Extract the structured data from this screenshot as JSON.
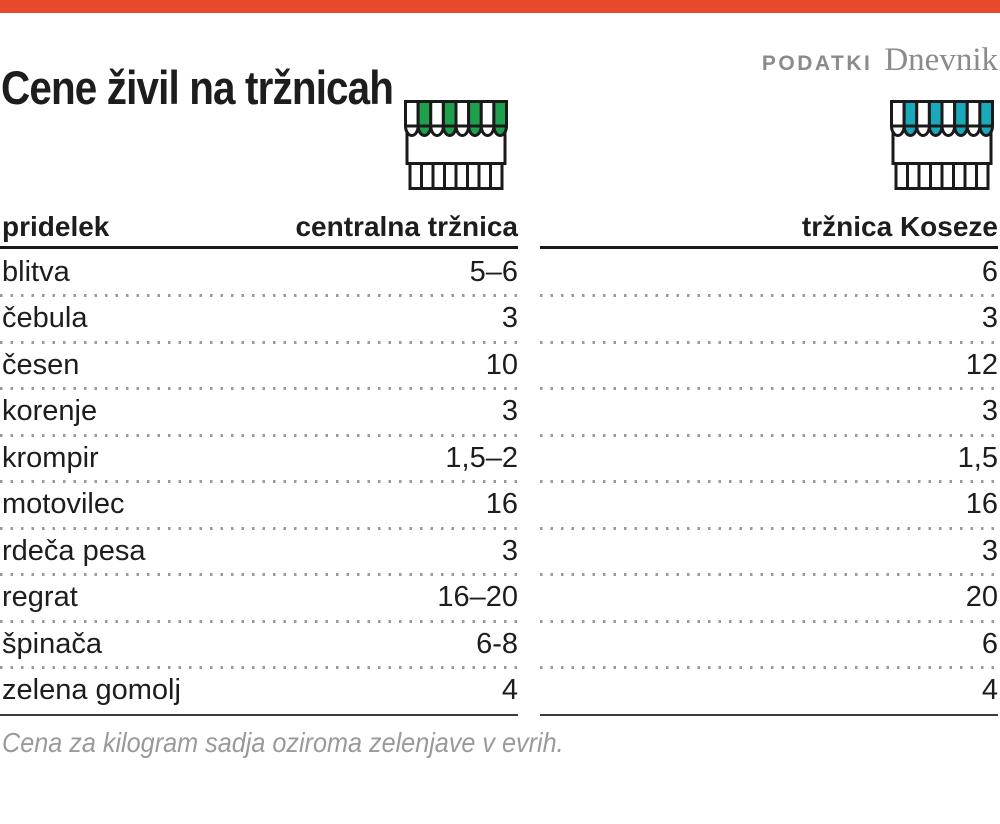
{
  "header": {
    "title": "Cene živil na tržnicah",
    "source_label": "PODATKI",
    "source_name": "Dnevnik"
  },
  "icons": {
    "left": "market-stall-awning-green",
    "right": "market-stall-awning-teal"
  },
  "colors": {
    "accent_orange": "#e8482c",
    "stall_green": "#1fa04c",
    "stall_teal": "#1aa9bb",
    "title_text": "#1d1d1d",
    "muted_text": "#8b8b8b"
  },
  "note": "Cena za kilogram sadja oziroma zelenjave v evrih.",
  "chart_data": {
    "type": "table",
    "title": "Cene živil na tržnicah",
    "columns": [
      "pridelek",
      "centralna tržnica",
      "tržnica Koseze"
    ],
    "rows": [
      [
        "blitva",
        "5–6",
        "6"
      ],
      [
        "čebula",
        "3",
        "3"
      ],
      [
        "česen",
        "10",
        "12"
      ],
      [
        "korenje",
        "3",
        "3"
      ],
      [
        "krompir",
        "1,5–2",
        "1,5"
      ],
      [
        "motovilec",
        "16",
        "16"
      ],
      [
        "rdeča pesa",
        "3",
        "3"
      ],
      [
        "regrat",
        "16–20",
        "20"
      ],
      [
        "špinača",
        "6-8",
        "6"
      ],
      [
        "zelena gomolj",
        "4",
        "4"
      ]
    ],
    "note": "Cena za kilogram sadja oziroma zelenjave v evrih.",
    "layout": {
      "unit": "EUR/kg",
      "grid": "dotted-row-separators",
      "value_alignment": "right"
    }
  }
}
